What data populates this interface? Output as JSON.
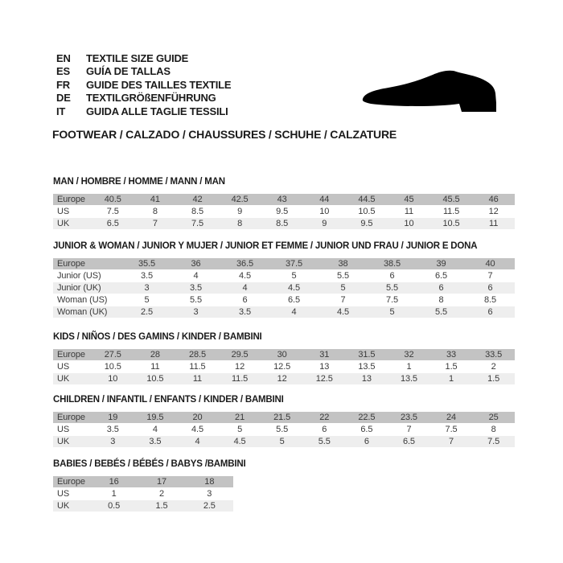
{
  "header": {
    "languages": [
      {
        "code": "EN",
        "label": "TEXTILE SIZE GUIDE"
      },
      {
        "code": "ES",
        "label": "GUÍA DE TALLAS"
      },
      {
        "code": "FR",
        "label": "GUIDE DES TAILLES TEXTILE"
      },
      {
        "code": "DE",
        "label": "TEXTILGRÖßENFÜHRUNG"
      },
      {
        "code": "IT",
        "label": "GUIDA ALLE TAGLIE TESSILI"
      }
    ],
    "category_line": "FOOTWEAR / CALZADO / CHAUSSURES / SCHUHE / CALZATURE",
    "shoe_icon": "dress-shoe-silhouette"
  },
  "colors": {
    "header_row_bg": "#c3c3c3",
    "alt_row_bg": "#eeeeee",
    "table_text": "#3a3a3a",
    "title_text": "#1b1b1b",
    "shoe": "#000000"
  },
  "tables": [
    {
      "title": "MAN / HOMBRE / HOMME / MANN / MAN",
      "rows": [
        {
          "label": "Europe",
          "values": [
            "40.5",
            "41",
            "42",
            "42.5",
            "43",
            "44",
            "44.5",
            "45",
            "45.5",
            "46"
          ]
        },
        {
          "label": "US",
          "values": [
            "7.5",
            "8",
            "8.5",
            "9",
            "9.5",
            "10",
            "10.5",
            "11",
            "11.5",
            "12"
          ]
        },
        {
          "label": "UK",
          "values": [
            "6.5",
            "7",
            "7.5",
            "8",
            "8.5",
            "9",
            "9.5",
            "10",
            "10.5",
            "11"
          ]
        }
      ]
    },
    {
      "title": "JUNIOR & WOMAN / JUNIOR Y MUJER / JUNIOR ET FEMME / JUNIOR UND FRAU / JUNIOR E DONA",
      "rows": [
        {
          "label": "Europe",
          "values": [
            "35.5",
            "36",
            "36.5",
            "37.5",
            "38",
            "38.5",
            "39",
            "40"
          ]
        },
        {
          "label": "Junior (US)",
          "values": [
            "3.5",
            "4",
            "4.5",
            "5",
            "5.5",
            "6",
            "6.5",
            "7"
          ]
        },
        {
          "label": "Junior (UK)",
          "values": [
            "3",
            "3.5",
            "4",
            "4.5",
            "5",
            "5.5",
            "6",
            "6"
          ]
        },
        {
          "label": "Woman (US)",
          "values": [
            "5",
            "5.5",
            "6",
            "6.5",
            "7",
            "7.5",
            "8",
            "8.5"
          ]
        },
        {
          "label": "Woman (UK)",
          "values": [
            "2.5",
            "3",
            "3.5",
            "4",
            "4.5",
            "5",
            "5.5",
            "6"
          ]
        }
      ]
    },
    {
      "title": "KIDS / NIÑOS / DES GAMINS / KINDER / BAMBINI",
      "rows": [
        {
          "label": "Europe",
          "values": [
            "27.5",
            "28",
            "28.5",
            "29.5",
            "30",
            "31",
            "31.5",
            "32",
            "33",
            "33.5"
          ]
        },
        {
          "label": "US",
          "values": [
            "10.5",
            "11",
            "11.5",
            "12",
            "12.5",
            "13",
            "13.5",
            "1",
            "1.5",
            "2"
          ]
        },
        {
          "label": "UK",
          "values": [
            "10",
            "10.5",
            "11",
            "11.5",
            "12",
            "12.5",
            "13",
            "13.5",
            "1",
            "1.5"
          ]
        }
      ]
    },
    {
      "title": "CHILDREN / INFANTIL / ENFANTS / KINDER / BAMBINI",
      "rows": [
        {
          "label": "Europe",
          "values": [
            "19",
            "19.5",
            "20",
            "21",
            "21.5",
            "22",
            "22.5",
            "23.5",
            "24",
            "25"
          ]
        },
        {
          "label": "US",
          "values": [
            "3.5",
            "4",
            "4.5",
            "5",
            "5.5",
            "6",
            "6.5",
            "7",
            "7.5",
            "8"
          ]
        },
        {
          "label": "UK",
          "values": [
            "3",
            "3.5",
            "4",
            "4.5",
            "5",
            "5.5",
            "6",
            "6.5",
            "7",
            "7.5"
          ]
        }
      ]
    },
    {
      "title": "BABIES / BEBÉS / BÉBÉS / BABYS /BAMBINI",
      "rows": [
        {
          "label": "Europe",
          "values": [
            "16",
            "17",
            "18"
          ]
        },
        {
          "label": "US",
          "values": [
            "1",
            "2",
            "3"
          ]
        },
        {
          "label": "UK",
          "values": [
            "0.5",
            "1.5",
            "2.5"
          ]
        }
      ]
    }
  ]
}
